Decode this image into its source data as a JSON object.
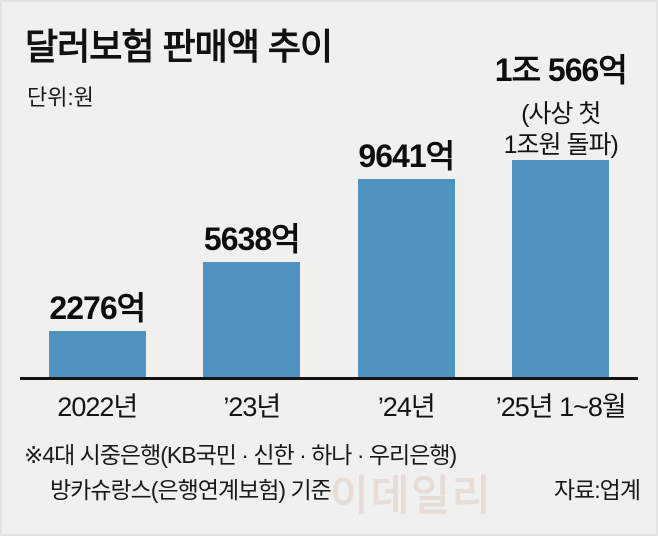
{
  "title": "달러보험 판매액 추이",
  "unit_label": "단위:원",
  "chart_data": {
    "type": "bar",
    "title": "달러보험 판매액 추이",
    "ylabel": "원",
    "categories": [
      "2022년",
      "’23년",
      "’24년",
      "’25년 1~8월"
    ],
    "values": [
      2276,
      5638,
      9641,
      10566
    ],
    "value_labels": [
      "2276억",
      "5638억",
      "9641억",
      "1조 566억"
    ],
    "annotation": {
      "target": "’25년 1~8월",
      "line1": "(사상 첫",
      "line2": "1조원 돌파)"
    },
    "ymax": 10566,
    "bar_color": "#4f93c3",
    "grid": false,
    "legend": "none"
  },
  "footnote": {
    "line1": "※4대 시중은행(KB국민 · 신한 · 하나 · 우리은행)",
    "line2": "방카슈랑스(은행연계보험) 기준",
    "source": "자료:업계"
  },
  "watermark": "이데일리"
}
